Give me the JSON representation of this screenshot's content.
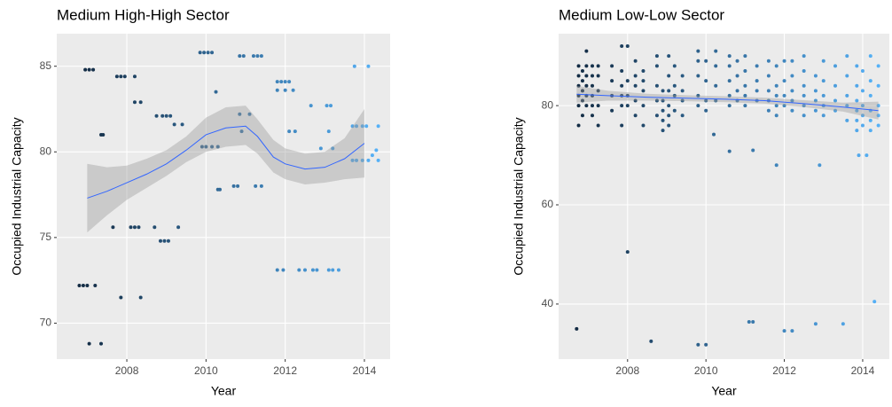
{
  "chart_data": [
    {
      "type": "scatter",
      "title": "Medium High-High Sector",
      "x_label": "Year",
      "y_label": "Occupied Industrial Capacity",
      "xlim": [
        2006.23,
        2014.65
      ],
      "ylim": [
        67.9,
        86.9
      ],
      "xticks": [
        2008,
        2010,
        2012,
        2014
      ],
      "yticks": [
        70,
        75,
        80,
        85
      ],
      "grid": true,
      "point_color_low": "#132B43",
      "point_color_high": "#56B1F7",
      "points": {
        "x": [
          2006.8,
          2006.9,
          2007.0,
          2007.2,
          2006.95,
          2007.05,
          2007.15,
          2007.05,
          2007.35,
          2007.35,
          2007.4,
          2007.65,
          2007.75,
          2007.85,
          2007.95,
          2007.85,
          2008.1,
          2008.2,
          2008.3,
          2008.2,
          2008.2,
          2008.35,
          2008.35,
          2008.7,
          2008.75,
          2008.9,
          2009.0,
          2009.1,
          2008.85,
          2008.95,
          2009.05,
          2009.3,
          2009.2,
          2009.4,
          2009.85,
          2009.95,
          2010.05,
          2010.15,
          2009.9,
          2010.0,
          2010.15,
          2010.25,
          2010.3,
          2010.35,
          2010.3,
          2010.7,
          2010.8,
          2010.85,
          2010.95,
          2010.85,
          2011.1,
          2010.9,
          2011.2,
          2011.3,
          2011.4,
          2011.25,
          2011.4,
          2011.8,
          2011.9,
          2012.0,
          2012.1,
          2011.8,
          2012.0,
          2012.2,
          2011.8,
          2011.95,
          2012.1,
          2012.25,
          2012.35,
          2012.5,
          2012.65,
          2012.7,
          2012.8,
          2012.9,
          2013.05,
          2013.15,
          2013.1,
          2013.2,
          2013.35,
          2013.2,
          2013.1,
          2013.75,
          2014.1,
          2013.7,
          2013.8,
          2013.95,
          2014.05,
          2013.7,
          2013.8,
          2013.95,
          2014.1,
          2014.2,
          2014.35,
          2014.35,
          2014.3
        ],
        "y": [
          72.2,
          72.2,
          72.2,
          72.2,
          84.8,
          84.8,
          84.8,
          68.8,
          68.8,
          81.0,
          81.0,
          75.6,
          84.4,
          84.4,
          84.4,
          71.5,
          75.6,
          75.6,
          75.6,
          84.4,
          82.9,
          82.9,
          71.5,
          75.6,
          82.1,
          82.1,
          82.1,
          82.1,
          74.8,
          74.8,
          74.8,
          75.6,
          81.6,
          81.6,
          85.8,
          85.8,
          85.8,
          85.8,
          80.3,
          80.3,
          80.3,
          83.5,
          77.8,
          77.8,
          80.3,
          78.0,
          78.0,
          85.6,
          85.6,
          82.2,
          82.2,
          81.2,
          85.6,
          85.6,
          85.6,
          78.0,
          78.0,
          84.1,
          84.1,
          84.1,
          84.1,
          83.6,
          83.6,
          83.6,
          73.1,
          73.1,
          81.2,
          81.2,
          73.1,
          73.1,
          82.7,
          73.1,
          73.1,
          80.2,
          82.7,
          82.7,
          73.1,
          73.1,
          73.1,
          80.2,
          81.2,
          85.0,
          85.0,
          81.5,
          81.5,
          81.5,
          81.5,
          79.5,
          79.5,
          79.5,
          79.5,
          79.8,
          79.5,
          81.5,
          80.1
        ]
      },
      "smooth": {
        "color": "#3366FF",
        "ribbon_color": "#999999",
        "x": [
          2007.0,
          2007.5,
          2008.0,
          2008.5,
          2009.0,
          2009.5,
          2010.0,
          2010.5,
          2011.0,
          2011.3,
          2011.7,
          2012.0,
          2012.5,
          2013.0,
          2013.5,
          2014.0
        ],
        "y": [
          77.3,
          77.7,
          78.2,
          78.7,
          79.3,
          80.1,
          81.0,
          81.4,
          81.5,
          80.9,
          79.7,
          79.3,
          79.0,
          79.1,
          79.6,
          80.5
        ],
        "lower": [
          75.3,
          76.3,
          77.2,
          77.9,
          78.6,
          79.4,
          80.0,
          80.3,
          80.4,
          79.9,
          78.8,
          78.4,
          78.1,
          78.2,
          78.4,
          78.5
        ],
        "upper": [
          79.3,
          79.1,
          79.2,
          79.6,
          80.1,
          80.9,
          82.0,
          82.6,
          82.7,
          81.9,
          80.7,
          80.2,
          79.9,
          80.0,
          80.8,
          82.5
        ]
      }
    },
    {
      "type": "scatter",
      "title": "Medium Low-Low Sector",
      "x_label": "Year",
      "y_label": "Occupied Industrial Capacity",
      "xlim": [
        2006.24,
        2014.68
      ],
      "ylim": [
        28.9,
        94.5
      ],
      "xticks": [
        2008,
        2010,
        2012,
        2014
      ],
      "yticks": [
        40,
        60,
        80
      ],
      "grid": true,
      "point_color_low": "#132B43",
      "point_color_high": "#56B1F7",
      "points": {
        "x": [
          2006.75,
          2006.75,
          2006.75,
          2006.75,
          2006.75,
          2006.75,
          2006.85,
          2006.85,
          2006.85,
          2006.85,
          2006.85,
          2006.95,
          2006.95,
          2006.95,
          2006.95,
          2006.95,
          2006.95,
          2007.1,
          2007.1,
          2007.1,
          2007.1,
          2007.1,
          2007.1,
          2007.25,
          2007.25,
          2007.25,
          2007.25,
          2007.25,
          2007.6,
          2007.6,
          2007.6,
          2007.6,
          2007.85,
          2007.85,
          2007.85,
          2007.85,
          2007.85,
          2007.85,
          2008.0,
          2008.0,
          2008.0,
          2008.0,
          2008.2,
          2008.2,
          2008.2,
          2008.2,
          2008.2,
          2008.4,
          2008.4,
          2008.4,
          2008.4,
          2008.4,
          2008.75,
          2008.75,
          2008.75,
          2008.75,
          2008.75,
          2008.9,
          2008.9,
          2008.9,
          2008.9,
          2008.9,
          2009.05,
          2009.05,
          2009.05,
          2009.05,
          2009.05,
          2009.05,
          2009.2,
          2009.2,
          2009.2,
          2009.2,
          2009.4,
          2009.4,
          2009.4,
          2009.4,
          2009.8,
          2009.8,
          2009.8,
          2009.8,
          2009.8,
          2010.0,
          2010.0,
          2010.0,
          2010.0,
          2010.25,
          2010.25,
          2010.25,
          2010.25,
          2010.6,
          2010.6,
          2010.6,
          2010.6,
          2010.6,
          2010.8,
          2010.8,
          2010.8,
          2010.8,
          2011.0,
          2011.0,
          2011.0,
          2011.0,
          2011.0,
          2011.3,
          2011.3,
          2011.3,
          2011.3,
          2011.6,
          2011.6,
          2011.6,
          2011.6,
          2011.6,
          2011.8,
          2011.8,
          2011.8,
          2011.8,
          2011.8,
          2012.0,
          2012.0,
          2012.0,
          2012.0,
          2012.2,
          2012.2,
          2012.2,
          2012.2,
          2012.2,
          2012.5,
          2012.5,
          2012.5,
          2012.5,
          2012.5,
          2012.5,
          2012.8,
          2012.8,
          2012.8,
          2012.8,
          2013.0,
          2013.0,
          2013.0,
          2013.0,
          2013.0,
          2013.3,
          2013.3,
          2013.3,
          2013.3,
          2013.6,
          2013.6,
          2013.6,
          2013.6,
          2013.6,
          2013.85,
          2013.85,
          2013.85,
          2013.85,
          2013.85,
          2013.85,
          2014.0,
          2014.0,
          2014.0,
          2014.0,
          2014.0,
          2014.2,
          2014.2,
          2014.2,
          2014.2,
          2014.2,
          2014.2,
          2014.4,
          2014.4,
          2014.4,
          2014.4,
          2014.4,
          2006.7,
          2008.0,
          2008.6,
          2009.8,
          2010.0,
          2011.1,
          2011.2,
          2012.0,
          2012.2,
          2012.8,
          2013.5,
          2014.3,
          2010.2,
          2010.6,
          2011.2,
          2011.8,
          2012.9,
          2013.9,
          2014.1
        ],
        "y": [
          76,
          80,
          82,
          84,
          86,
          88,
          78,
          81,
          83,
          85,
          87,
          80,
          82,
          84,
          86,
          88,
          91,
          78,
          80,
          82,
          84,
          86,
          88,
          76,
          80,
          83,
          86,
          88,
          79,
          82,
          85,
          88,
          76,
          80,
          82,
          84,
          87,
          92,
          80,
          82,
          85,
          92,
          78,
          81,
          84,
          86,
          89,
          76,
          80,
          83,
          85,
          87,
          78,
          81,
          84,
          88,
          90,
          75,
          77,
          79,
          81,
          83,
          76,
          78,
          80,
          83,
          86,
          90,
          79,
          82,
          84,
          88,
          78,
          81,
          83,
          86,
          80,
          82,
          86,
          89,
          91,
          79,
          81,
          85,
          89,
          81,
          84,
          88,
          91,
          80,
          82,
          85,
          88,
          90,
          81,
          83,
          86,
          89,
          80,
          82,
          84,
          87,
          90,
          81,
          83,
          85,
          88,
          79,
          81,
          83,
          86,
          89,
          78,
          80,
          82,
          84,
          88,
          80,
          82,
          85,
          89,
          79,
          81,
          83,
          86,
          89,
          78,
          80,
          82,
          84,
          87,
          90,
          79,
          81,
          83,
          86,
          78,
          80,
          82,
          85,
          89,
          79,
          81,
          84,
          88,
          77,
          80,
          82,
          86,
          90,
          75,
          77,
          79,
          81,
          84,
          88,
          76,
          78,
          80,
          83,
          87,
          75,
          77,
          79,
          82,
          85,
          90,
          76,
          78,
          80,
          84,
          88,
          35,
          50.5,
          32.5,
          31.8,
          31.8,
          36.4,
          36.4,
          34.6,
          34.6,
          36,
          36,
          40.5,
          74.2,
          70.8,
          71,
          68,
          68,
          70,
          70
        ]
      },
      "smooth": {
        "color": "#3366FF",
        "ribbon_color": "#999999",
        "x": [
          2006.7,
          2007.5,
          2008.5,
          2009.5,
          2010.5,
          2011.5,
          2012.5,
          2013.5,
          2014.4
        ],
        "y": [
          82.3,
          82.0,
          81.7,
          81.5,
          81.3,
          81.0,
          80.4,
          79.7,
          79.0
        ],
        "lower": [
          80.6,
          81.0,
          81.0,
          80.9,
          80.7,
          80.4,
          79.7,
          78.8,
          77.2
        ],
        "upper": [
          84.0,
          83.0,
          82.4,
          82.1,
          81.9,
          81.6,
          81.1,
          80.6,
          80.8
        ]
      }
    }
  ]
}
